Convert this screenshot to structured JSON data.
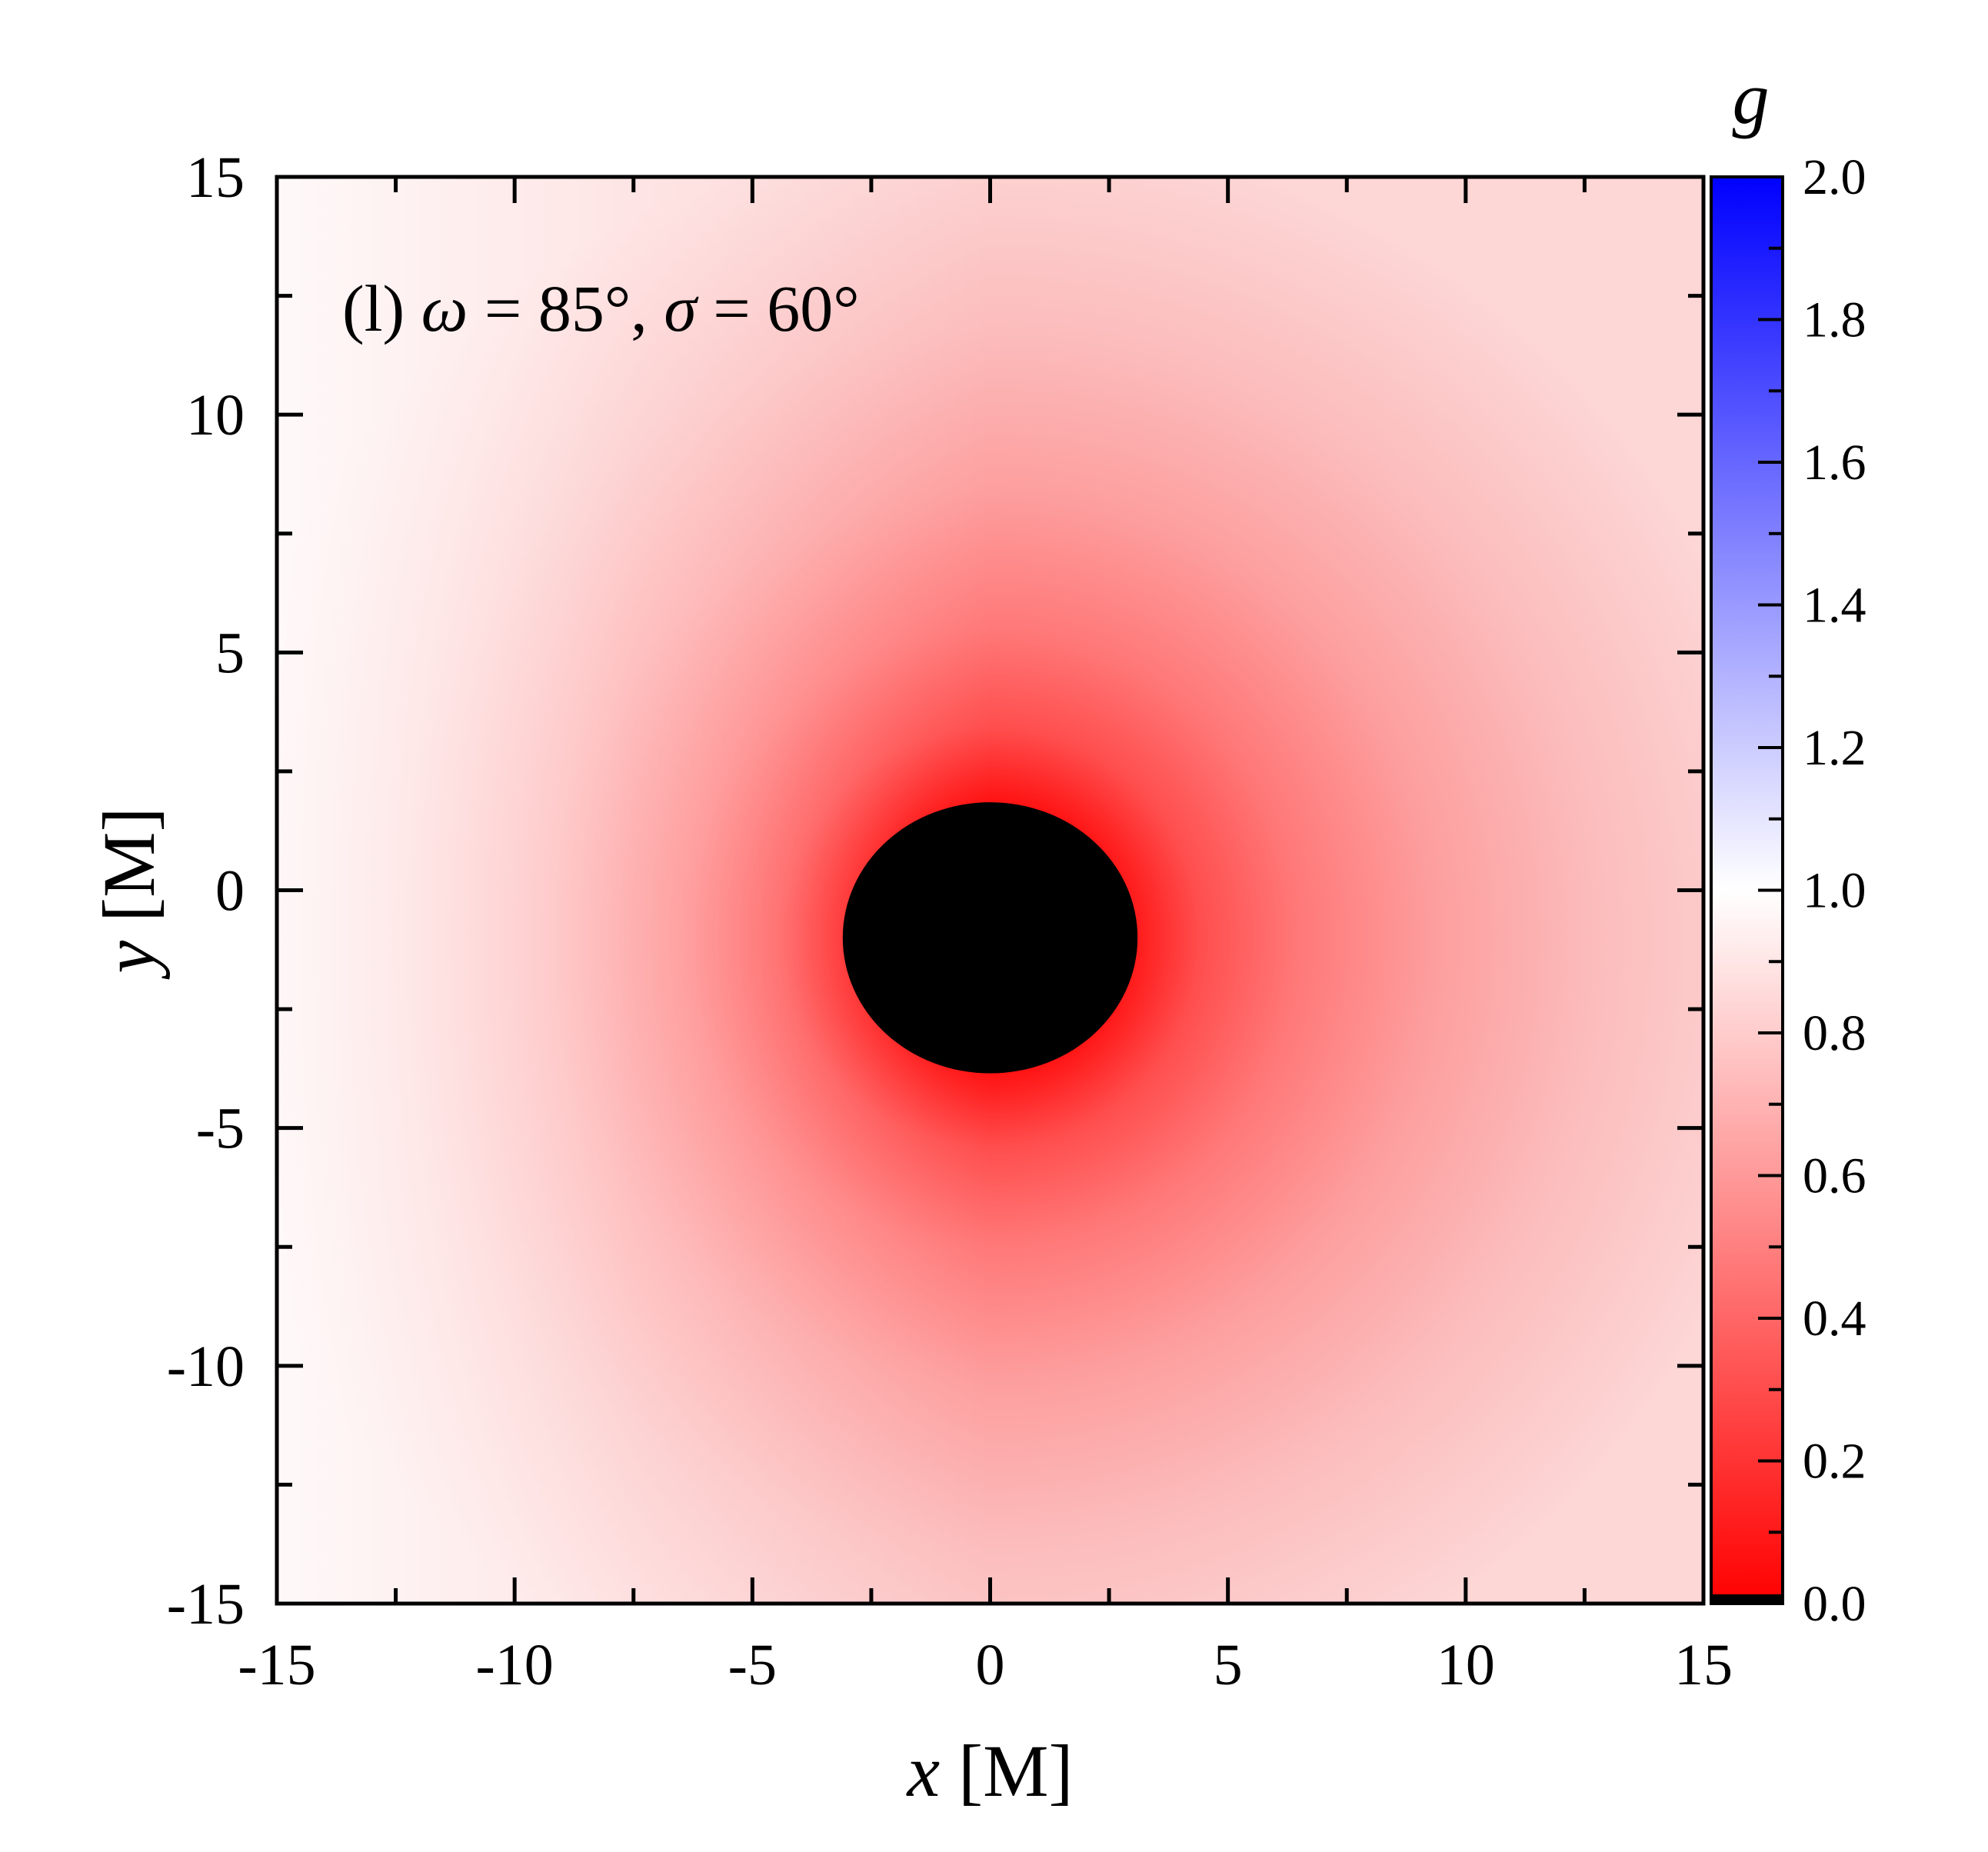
{
  "chart_data": {
    "type": "heatmap",
    "annotation": {
      "prefix": "(l) ",
      "omega_symbol": "ω",
      "omega_value": " = 85°, ",
      "sigma_symbol": "σ",
      "sigma_value": " = 60°"
    },
    "xlabel": {
      "var": "x",
      "unit": " [M]"
    },
    "ylabel": {
      "var": "y",
      "unit": " [M]"
    },
    "xlim": [
      -15,
      15
    ],
    "ylim": [
      -15,
      15
    ],
    "x_ticks": [
      -15,
      -10,
      -5,
      0,
      5,
      10,
      15
    ],
    "y_ticks": [
      -15,
      -10,
      -5,
      0,
      5,
      10,
      15
    ],
    "x_tick_labels": [
      "-15",
      "-10",
      "-5",
      "0",
      "5",
      "10",
      "15"
    ],
    "y_tick_labels": [
      "-15",
      "-10",
      "-5",
      "0",
      "5",
      "10",
      "15"
    ],
    "colorbar": {
      "title": "g",
      "range": [
        0.0,
        2.0
      ],
      "ticks": [
        0.0,
        0.2,
        0.4,
        0.6,
        0.8,
        1.0,
        1.2,
        1.4,
        1.6,
        1.8,
        2.0
      ],
      "tick_labels": [
        "0.0",
        "0.2",
        "0.4",
        "0.6",
        "0.8",
        "1.0",
        "1.2",
        "1.4",
        "1.6",
        "1.8",
        "2.0"
      ],
      "colors": {
        "low": "#ff0000",
        "mid": "#ffffff",
        "high": "#0000ff"
      }
    },
    "shadow": {
      "center": [
        0.0,
        -1.0
      ],
      "radius_x": 3.1,
      "radius_y": 2.85,
      "color": "#000000"
    },
    "field_samples": [
      {
        "x": -14.5,
        "y": 0,
        "g": 0.97
      },
      {
        "x": -10,
        "y": 0,
        "g": 0.9
      },
      {
        "x": -5,
        "y": -1,
        "g": 0.72
      },
      {
        "x": -3.4,
        "y": -1,
        "g": 0.3
      },
      {
        "x": 0,
        "y": -4.2,
        "g": 0.15
      },
      {
        "x": 5,
        "y": -1,
        "g": 0.45
      },
      {
        "x": 10,
        "y": -1,
        "g": 0.62
      },
      {
        "x": 14.5,
        "y": 12,
        "g": 0.78
      },
      {
        "x": 14.5,
        "y": -14,
        "g": 0.75
      }
    ]
  }
}
